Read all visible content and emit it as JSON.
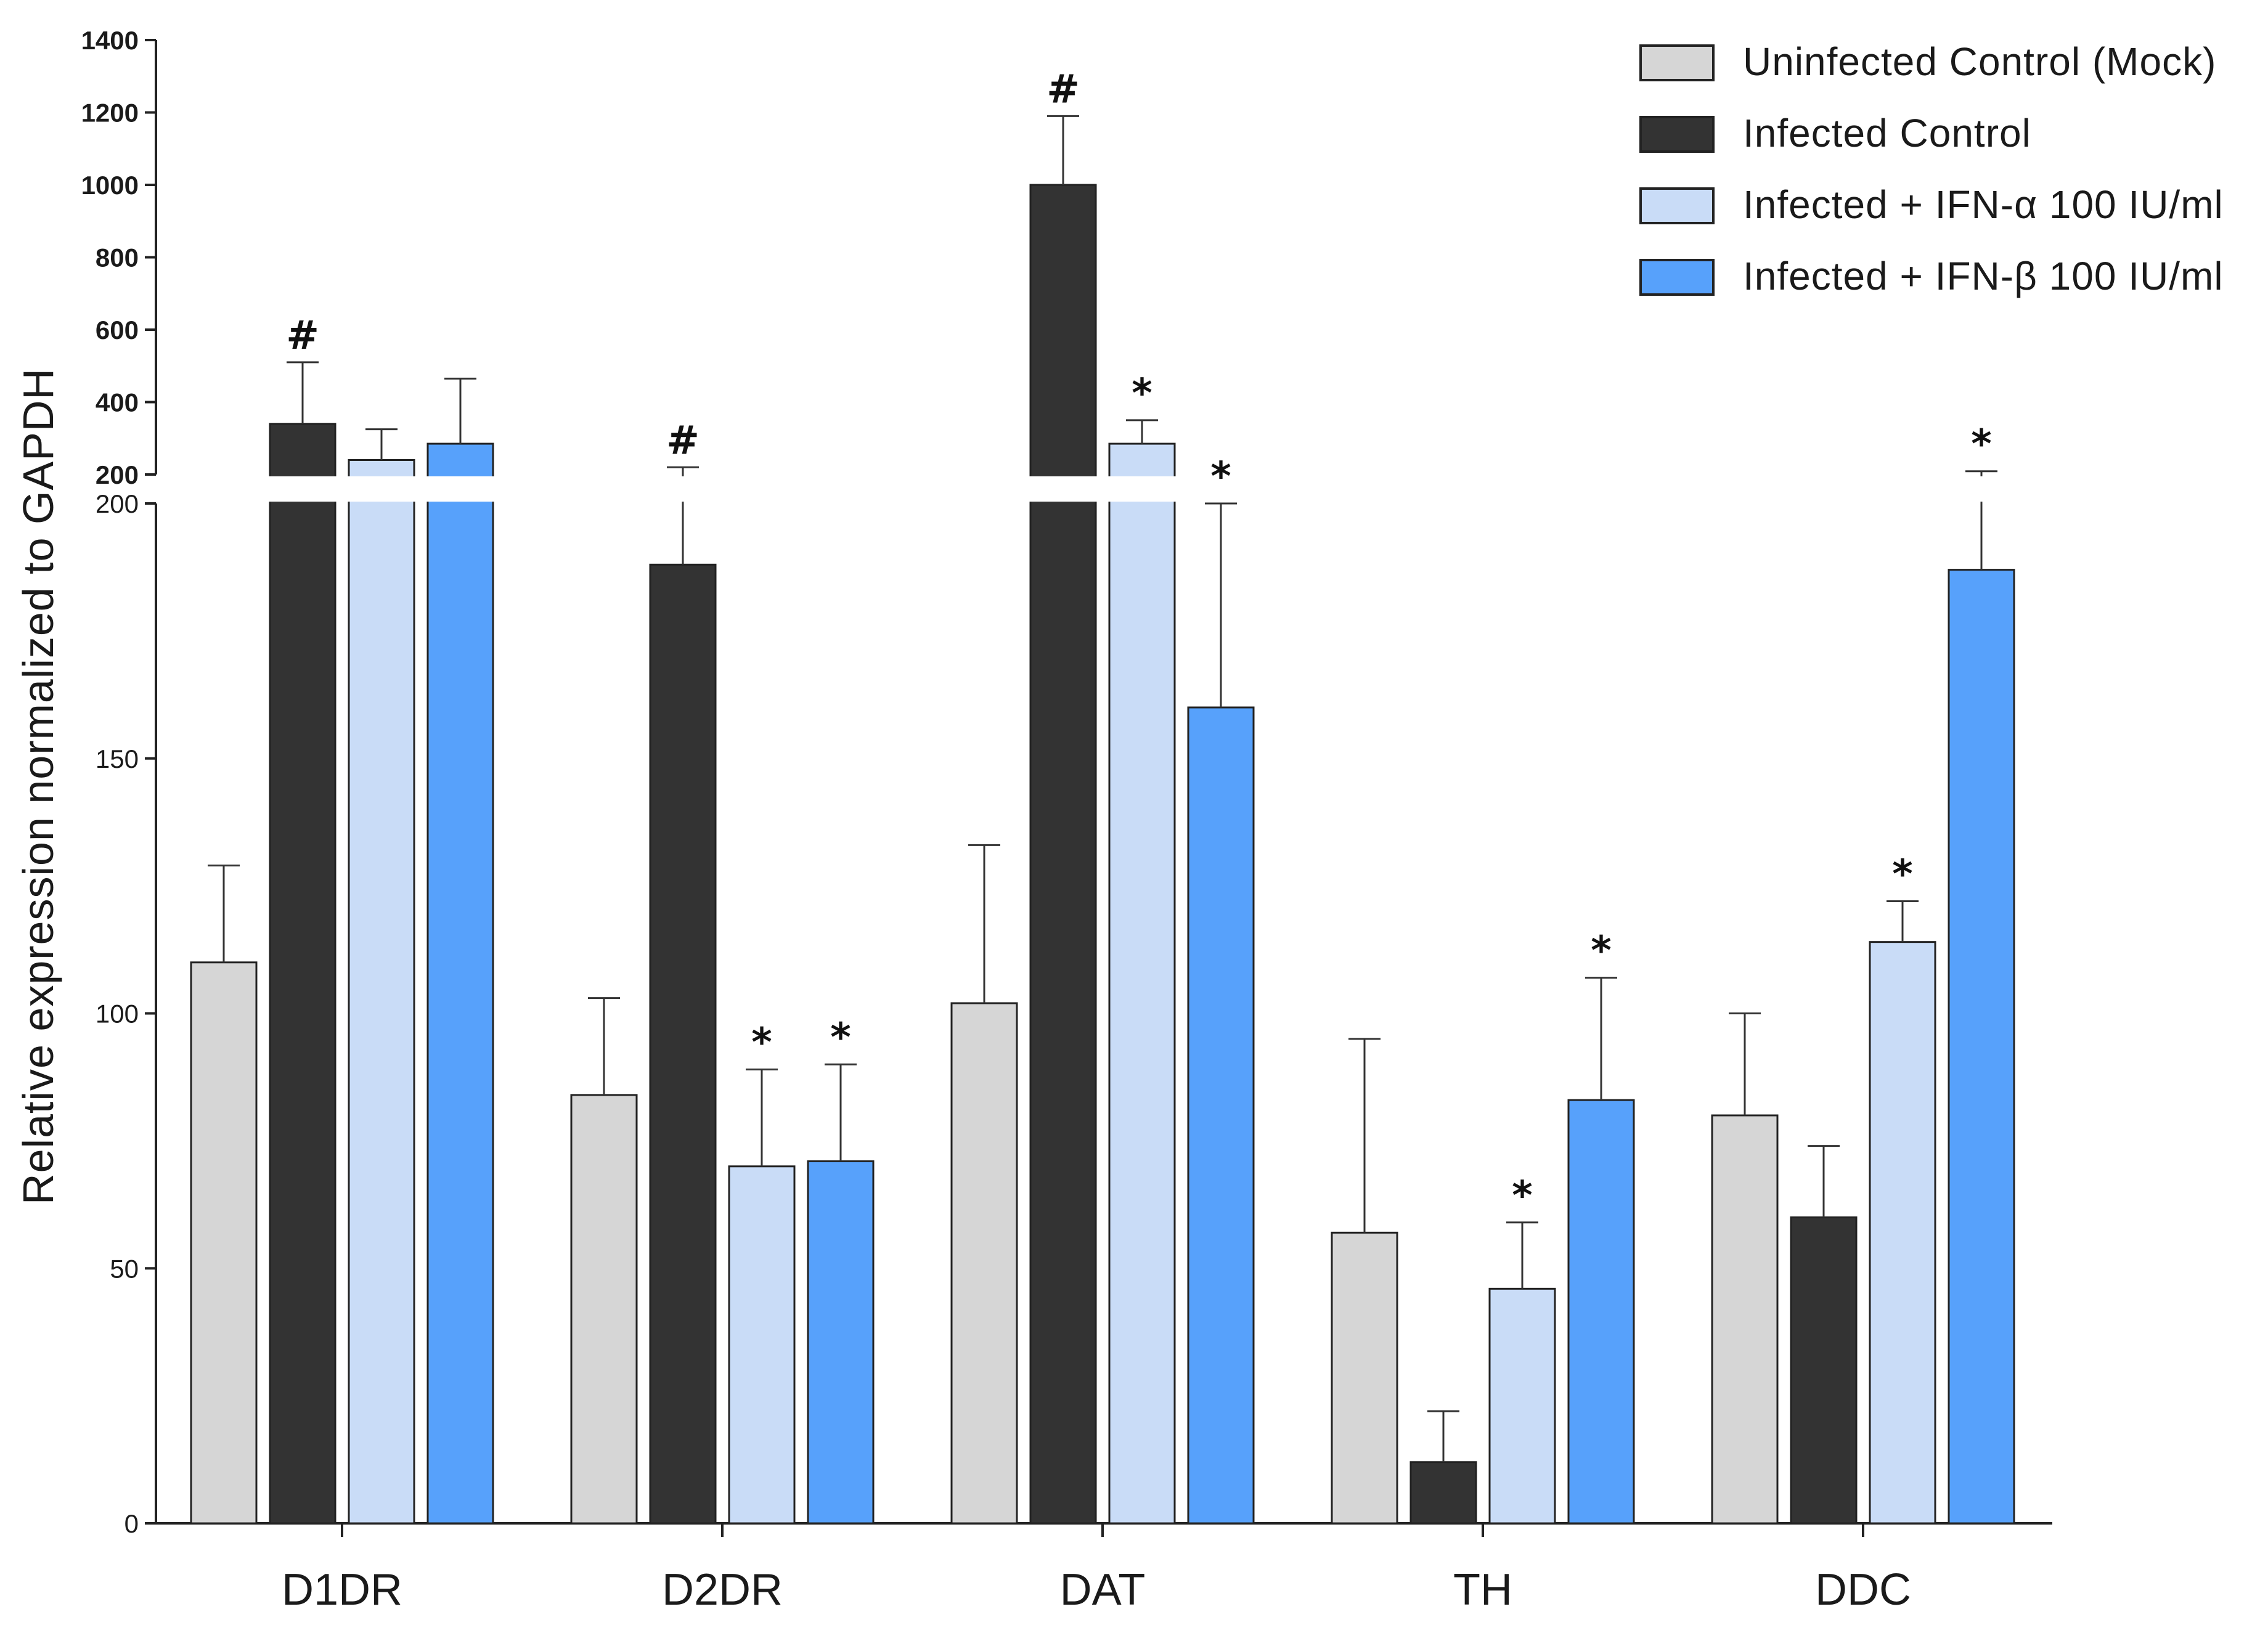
{
  "chart_data": {
    "type": "bar",
    "ylabel": "Relative expression normalized to GAPDH",
    "xlabel": "",
    "categories": [
      "D1DR",
      "D2DR",
      "DAT",
      "TH",
      "DDC"
    ],
    "axis_break": {
      "lower_range": [
        0,
        200
      ],
      "upper_range": [
        200,
        1400
      ],
      "lower_ticks": [
        "0",
        "50",
        "100",
        "150",
        "200"
      ],
      "upper_ticks": [
        "200",
        "400",
        "600",
        "800",
        "1000",
        "1200",
        "1400"
      ]
    },
    "series": [
      {
        "name": "Uninfected Control (Mock)",
        "color": "#d6d6d6",
        "values": [
          110,
          84,
          102,
          57,
          80
        ],
        "errors": [
          19,
          19,
          31,
          38,
          20
        ],
        "markers": [
          "",
          "",
          "",
          "",
          ""
        ]
      },
      {
        "name": "Infected Control",
        "color": "#333333",
        "values": [
          340,
          188,
          1000,
          12,
          60
        ],
        "errors": [
          170,
          32,
          190,
          10,
          14
        ],
        "markers": [
          "#",
          "#",
          "#",
          "",
          ""
        ]
      },
      {
        "name": "Infected + IFN-α 100 IU/ml",
        "color": "#c9dcf7",
        "values": [
          240,
          70,
          285,
          46,
          114
        ],
        "errors": [
          85,
          19,
          65,
          13,
          8
        ],
        "markers": [
          "",
          "*",
          "*",
          "*",
          "*"
        ]
      },
      {
        "name": "Infected + IFN-β 100 IU/ml",
        "color": "#57a1fb",
        "values": [
          285,
          71,
          160,
          83,
          187
        ],
        "errors": [
          180,
          19,
          40,
          24,
          22
        ],
        "markers": [
          "",
          "*",
          "*",
          "*",
          "*"
        ]
      }
    ]
  }
}
